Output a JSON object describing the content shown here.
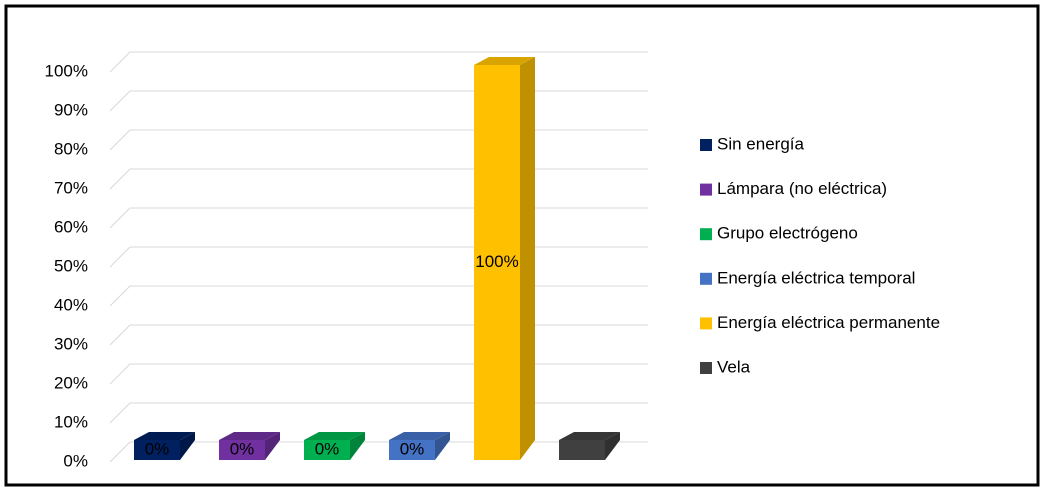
{
  "chart_data": {
    "type": "bar3d",
    "series": [
      {
        "name": "Sin energía",
        "color": "#002060",
        "values": [
          0
        ],
        "value_labels": [
          "0%"
        ]
      },
      {
        "name": "Lámpara (no eléctrica)",
        "color": "#7030a0",
        "values": [
          0
        ],
        "value_labels": [
          "0%"
        ]
      },
      {
        "name": "Grupo electrógeno",
        "color": "#00b050",
        "values": [
          0
        ],
        "value_labels": [
          "0%"
        ]
      },
      {
        "name": "Energía eléctrica temporal",
        "color": "#4472c4",
        "values": [
          0
        ],
        "value_labels": [
          "0%"
        ]
      },
      {
        "name": "Energía eléctrica permanente",
        "color": "#ffc000",
        "values": [
          100
        ],
        "value_labels": [
          "100%"
        ]
      },
      {
        "name": "Vela",
        "color": "#404040",
        "values": [
          0
        ]
      }
    ],
    "ylim": [
      0,
      100
    ],
    "yticks": [
      {
        "value": 0,
        "label": "0%"
      },
      {
        "value": 10,
        "label": "10%"
      },
      {
        "value": 20,
        "label": "20%"
      },
      {
        "value": 30,
        "label": "30%"
      },
      {
        "value": 40,
        "label": "40%"
      },
      {
        "value": 50,
        "label": "50%"
      },
      {
        "value": 60,
        "label": "60%"
      },
      {
        "value": 70,
        "label": "70%"
      },
      {
        "value": 80,
        "label": "80%"
      },
      {
        "value": 90,
        "label": "90%"
      },
      {
        "value": 100,
        "label": "100%"
      }
    ],
    "grid": true,
    "legend": "right"
  }
}
